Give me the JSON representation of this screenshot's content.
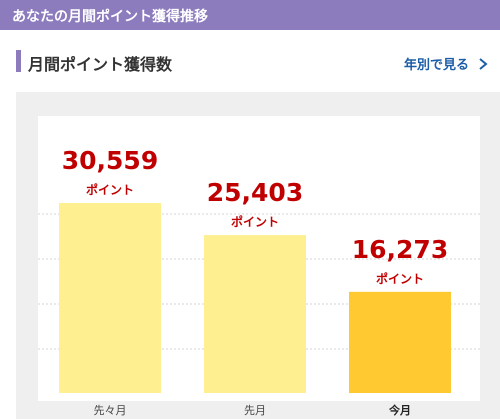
{
  "header": {
    "title": "あなたの月間ポイント獲得推移"
  },
  "section": {
    "title": "月間ポイント獲得数",
    "yearly_link": "年別で見る"
  },
  "colors": {
    "header": "#8c7bbd",
    "bar_past": "#fef090",
    "bar_current": "#ffc931",
    "value_text": "#c00000",
    "link": "#1d5ea8"
  },
  "icons": {
    "yearly_link": "chevron-right-icon"
  },
  "chart_data": {
    "type": "bar",
    "categories": [
      "先々月",
      "先月",
      "今月"
    ],
    "values": [
      30559,
      25403,
      16273
    ],
    "value_labels": [
      "30,559",
      "25,403",
      "16,273"
    ],
    "unit": "ポイント",
    "highlight_index": 2,
    "ylim": [
      0,
      45000
    ],
    "grid": true
  }
}
